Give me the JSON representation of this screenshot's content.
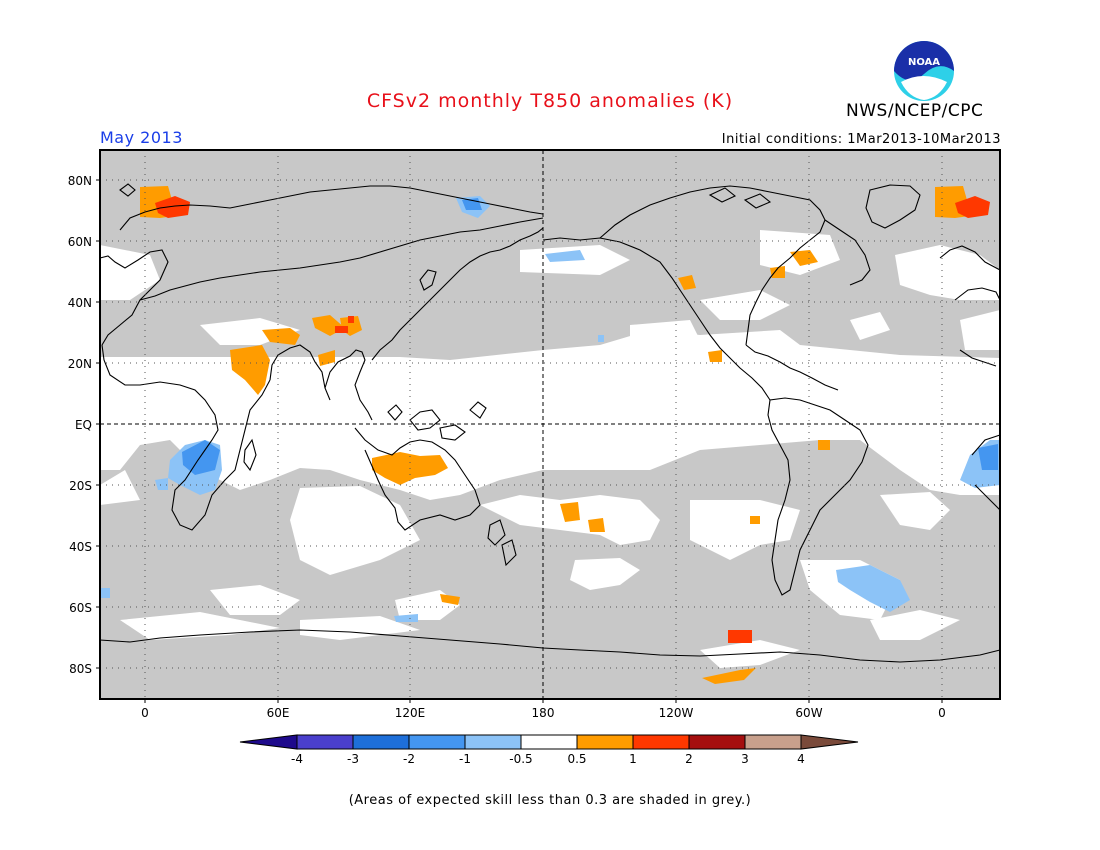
{
  "header": {
    "title": "CFSv2 monthly T850 anomalies (K)",
    "agency": "NWS/NCEP/CPC",
    "logo_text": "NOAA",
    "month": "May 2013",
    "initial_conditions": "Initial conditions: 1Mar2013-10Mar2013"
  },
  "axes": {
    "x_ticks": [
      "0",
      "60E",
      "120E",
      "180",
      "120W",
      "60W",
      "0"
    ],
    "y_ticks": [
      "80N",
      "60N",
      "40N",
      "20N",
      "EQ",
      "20S",
      "40S",
      "60S",
      "80S"
    ]
  },
  "colorbar": {
    "labels": [
      "-4",
      "-3",
      "-2",
      "-1",
      "-0.5",
      "0.5",
      "1",
      "2",
      "3",
      "4"
    ],
    "colors": [
      "#1e0a8c",
      "#4a3fcc",
      "#1e6fd9",
      "#4496f0",
      "#8cc3f7",
      "#ffffff",
      "#ff9c00",
      "#ff3800",
      "#a50f0f",
      "#c8a08c",
      "#7a4a3a"
    ]
  },
  "legend": {
    "grey_color": "#c8c8c8",
    "ocean_color": "#ffffff"
  },
  "footnote": "(Areas of expected skill less than 0.3 are shaded in grey.)"
}
